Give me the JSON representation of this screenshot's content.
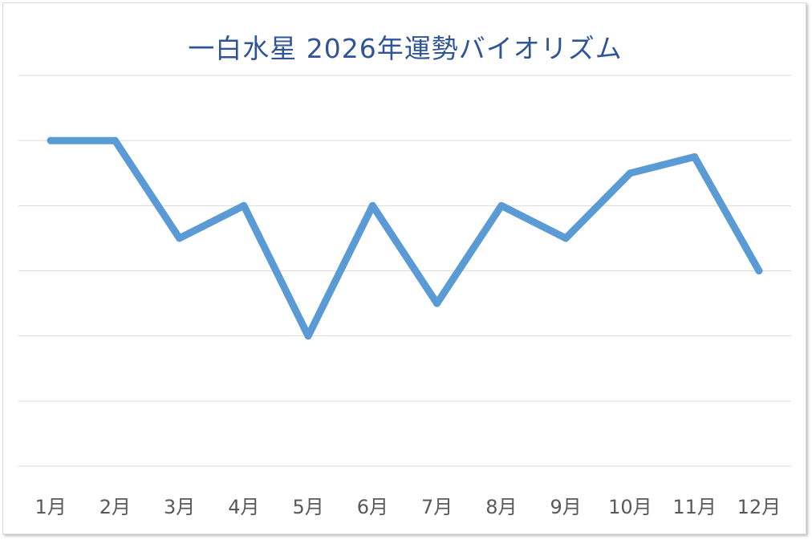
{
  "chart_data": {
    "type": "line",
    "title": "一白水星 2026年運勢バイオリズム",
    "xlabel": "",
    "ylabel": "",
    "categories": [
      "1月",
      "2月",
      "3月",
      "4月",
      "5月",
      "6月",
      "7月",
      "8月",
      "9月",
      "10月",
      "11月",
      "12月"
    ],
    "series": [
      {
        "values": [
          5,
          5,
          3.5,
          4,
          2,
          4,
          2.5,
          4,
          3.5,
          4.5,
          4.75,
          3
        ],
        "color": "#5b9bd5"
      }
    ],
    "ylim": [
      0,
      6
    ],
    "y_ticks_shown": false,
    "grid": true,
    "legend": "none",
    "colors": {
      "title": "#2f5597",
      "gridline": "#d9d9d9",
      "tick_label": "#595959"
    }
  }
}
